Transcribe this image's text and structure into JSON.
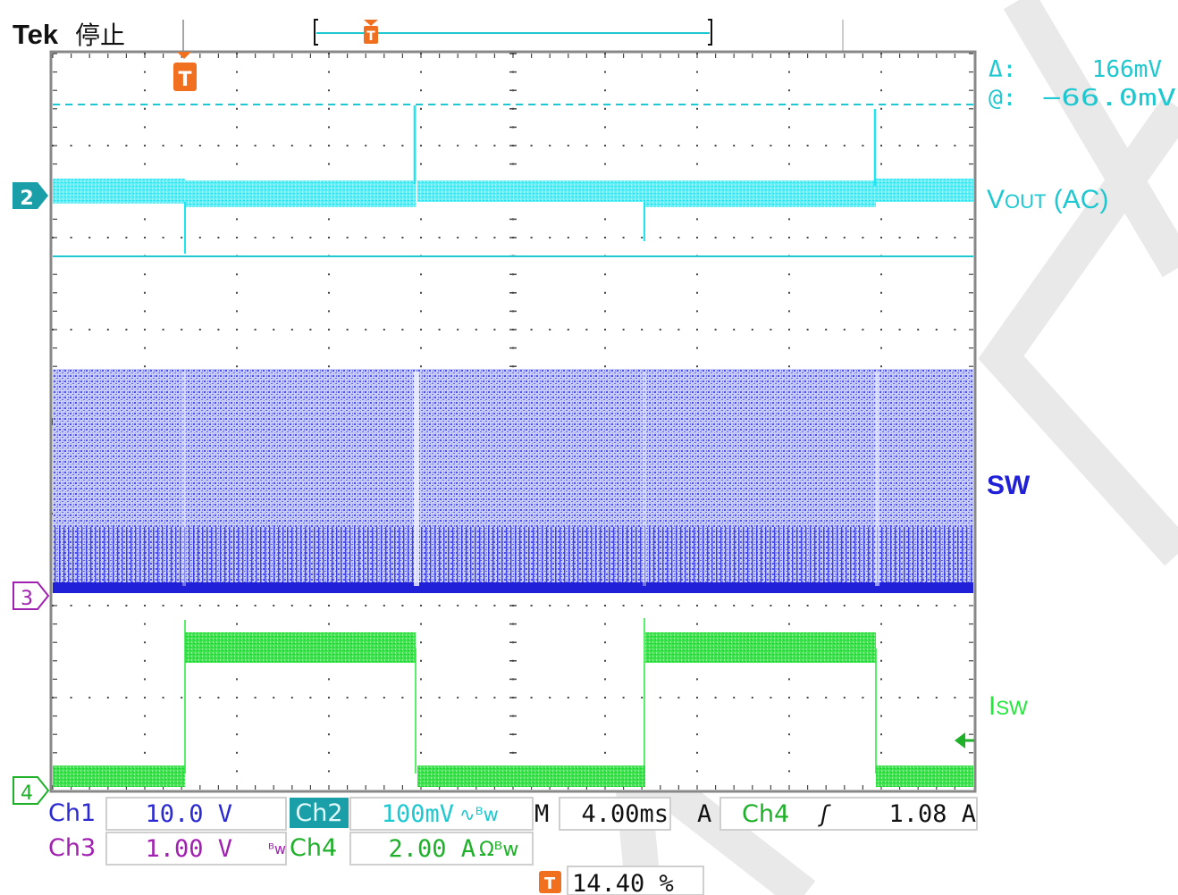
{
  "header": {
    "brand": "Tek",
    "acquisition_state": "停止"
  },
  "cursor_readout": {
    "delta_label": "Δ:",
    "delta_value": "166mV",
    "at_label": "@:",
    "at_value": "−66.0mV"
  },
  "traces": {
    "ch2": {
      "marker": "2",
      "label_main": "V",
      "label_sub": "OUT",
      "label_suffix": " (AC)",
      "color": "#1ee6f0"
    },
    "ch3": {
      "marker": "3",
      "label": "SW",
      "color": "#2a2ae6"
    },
    "ch4": {
      "marker": "4",
      "label_main": "I",
      "label_sub": "SW",
      "color": "#22e83a"
    }
  },
  "trigger_marker": {
    "label": "T",
    "color": "#f07020"
  },
  "channel_settings": {
    "ch1": {
      "name": "Ch1",
      "scale": "10.0 V"
    },
    "ch2": {
      "name": "Ch2",
      "scale": "100mV",
      "suffix": "∿ᴮw"
    },
    "ch3": {
      "name": "Ch3",
      "scale": "1.00 V",
      "bw": "ᴮw"
    },
    "ch4": {
      "name": "Ch4",
      "scale": "2.00 A",
      "suffix": "Ωᴮw"
    }
  },
  "timebase": {
    "prefix": "M",
    "value": "4.00ms"
  },
  "trigger": {
    "mode": "A",
    "source": "Ch4",
    "slope": "ʃ",
    "level": "1.08 A"
  },
  "trigger_position": {
    "value": "14.40 %"
  },
  "colors": {
    "ch1": "#2a2ad0",
    "ch2": "#1ec8d0",
    "ch3": "#a020b0",
    "ch4": "#1fb02a",
    "grid": "#555555",
    "trigger": "#f07020"
  }
}
